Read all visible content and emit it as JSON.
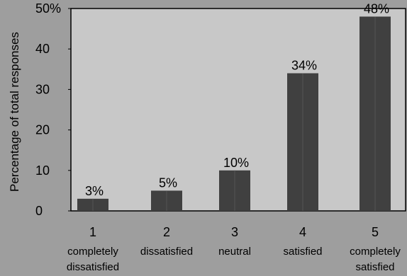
{
  "chart_data": {
    "type": "bar",
    "categories": [
      {
        "num": "1",
        "text": [
          "completely",
          "dissatisfied"
        ]
      },
      {
        "num": "2",
        "text": [
          "dissatisfied"
        ]
      },
      {
        "num": "3",
        "text": [
          "neutral"
        ]
      },
      {
        "num": "4",
        "text": [
          "satisfied"
        ]
      },
      {
        "num": "5",
        "text": [
          "completely",
          "satisfied"
        ]
      }
    ],
    "values": [
      3,
      5,
      10,
      34,
      48
    ],
    "data_labels": [
      "3%",
      "5%",
      "10%",
      "34%",
      "48%"
    ],
    "ylabel": "Percentage of total responses",
    "xlabel": "",
    "title": "",
    "ylim": [
      0,
      50
    ],
    "yticks": [
      0,
      10,
      20,
      30,
      40,
      50
    ],
    "ytick_labels": [
      "0",
      "10",
      "20",
      "30",
      "40",
      "50%"
    ],
    "grid": false,
    "colors": {
      "page_background": "#9e9e9e",
      "plot_background": "#c8c8c8",
      "bar": "#404040",
      "axis": "#000000"
    }
  }
}
